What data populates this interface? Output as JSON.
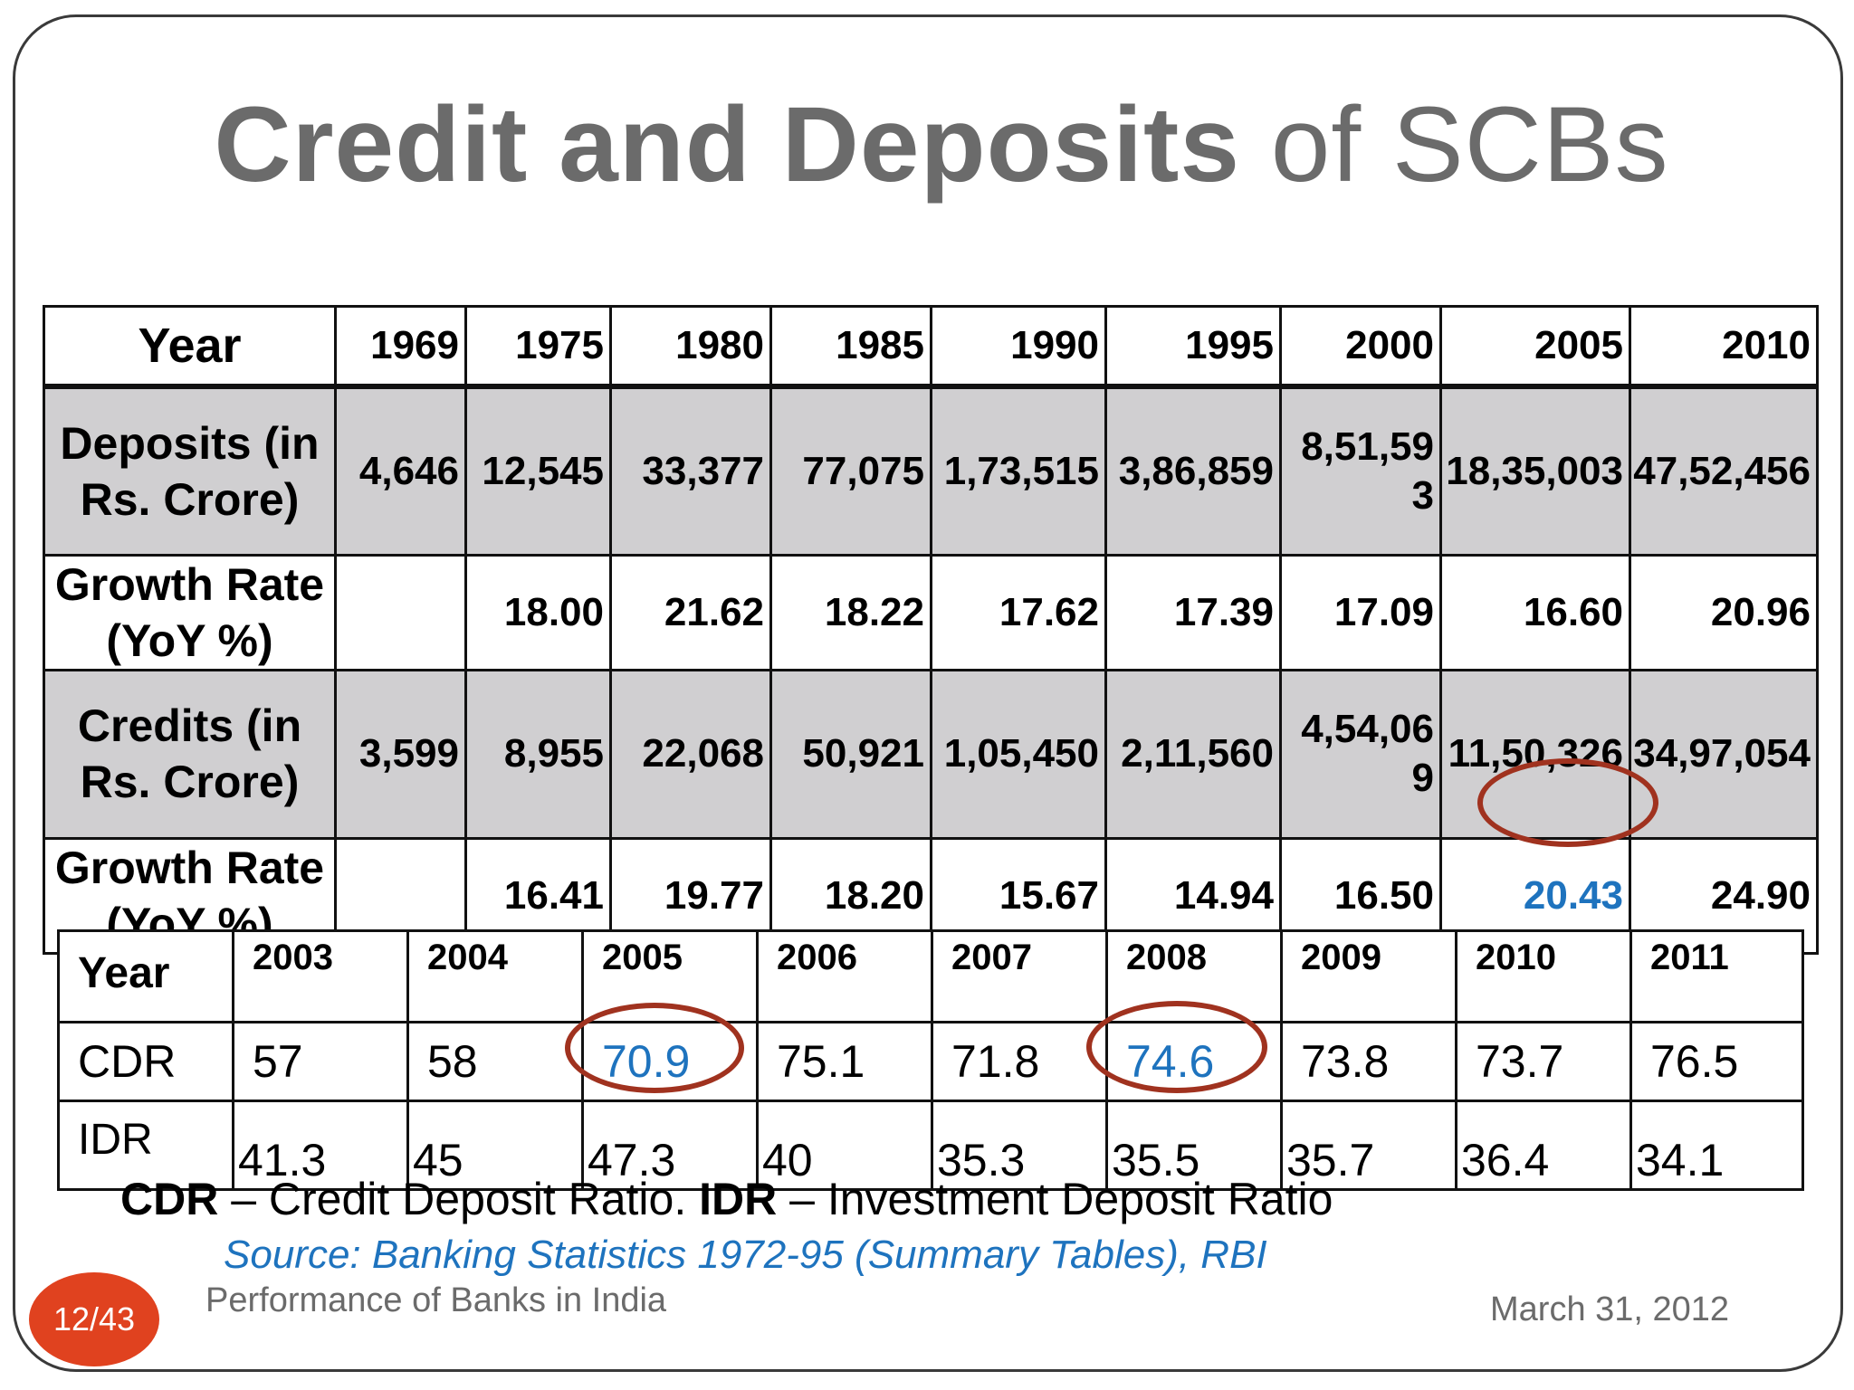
{
  "title_bold": "Credit and Deposits",
  "title_rest": "of SCBs",
  "main_table": {
    "year_label": "Year",
    "years": [
      "1969",
      "1975",
      "1980",
      "1985",
      "1990",
      "1995",
      "2000",
      "2005",
      "2010"
    ],
    "rows": [
      {
        "label": "Deposits (in Rs. Crore)",
        "values": [
          "4,646",
          "12,545",
          "33,377",
          "77,075",
          "1,73,515",
          "3,86,859",
          "8,51,593",
          "18,35,003",
          "47,52,456"
        ]
      },
      {
        "label": "Growth Rate (YoY %)",
        "values": [
          "",
          "18.00",
          "21.62",
          "18.22",
          "17.62",
          "17.39",
          "17.09",
          "16.60",
          "20.96"
        ]
      },
      {
        "label": "Credits (in  Rs. Crore)",
        "values": [
          "3,599",
          "8,955",
          "22,068",
          "50,921",
          "1,05,450",
          "2,11,560",
          "4,54,069",
          "11,50,326",
          "34,97,054"
        ]
      },
      {
        "label": "Growth Rate (YoY %)",
        "values": [
          "",
          "16.41",
          "19.77",
          "18.20",
          "15.67",
          "14.94",
          "16.50",
          "20.43",
          "24.90"
        ]
      }
    ]
  },
  "ratio_table": {
    "year_label": "Year",
    "years": [
      "2003",
      "2004",
      "2005",
      "2006",
      "2007",
      "2008",
      "2009",
      "2010",
      "2011"
    ],
    "cdr_label": "CDR",
    "cdr": [
      "57",
      "58",
      "70.9",
      "75.1",
      "71.8",
      "74.6",
      "73.8",
      "73.7",
      "76.5"
    ],
    "idr_label": "IDR",
    "idr": [
      "41.3",
      "45",
      "47.3",
      "40",
      "35.3",
      "35.5",
      "35.7",
      "36.4",
      "34.1"
    ]
  },
  "legend": {
    "cdr_abbr": "CDR",
    "cdr_text": " – Credit Deposit Ratio. ",
    "idr_abbr": "IDR",
    "idr_text": " – Investment Deposit Ratio"
  },
  "source": "Source: Banking Statistics 1972-95 (Summary Tables), RBI",
  "slide_number": "12/43",
  "footer_left": "Performance of Banks in India",
  "footer_right": "March 31, 2012",
  "colors": {
    "highlight_blue": "#1e73be",
    "circle_red": "#a0321f",
    "badge_orange": "#e0421f",
    "title_gray": "#6b6b6b",
    "row_shade": "#d0cfd1"
  }
}
